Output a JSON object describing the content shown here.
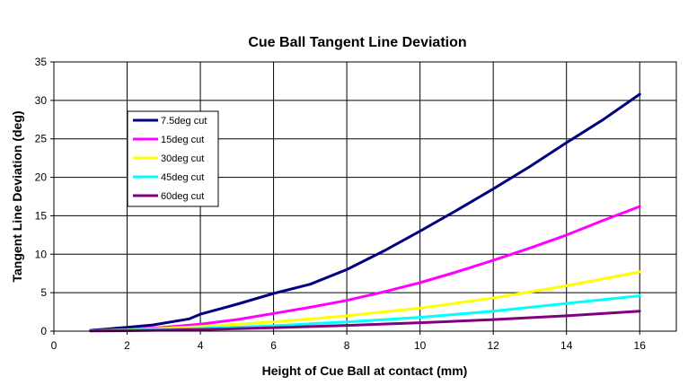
{
  "chart_data": {
    "type": "line",
    "title": "Cue Ball Tangent Line Deviation",
    "xlabel": "Height of Cue Ball at contact (mm)",
    "ylabel": "Tangent Line Deviation (deg)",
    "xlim": [
      0,
      17
    ],
    "ylim": [
      0,
      35
    ],
    "xticks": [
      0,
      2,
      4,
      6,
      8,
      10,
      12,
      14,
      16
    ],
    "yticks": [
      0,
      5,
      10,
      15,
      20,
      25,
      30,
      35
    ],
    "grid": true,
    "legend_position": "top-left",
    "series": [
      {
        "name": "7.5deg cut",
        "color": "#000080",
        "x": [
          1,
          2,
          2.7,
          3.7,
          4,
          5,
          6,
          7,
          8,
          9,
          10,
          11,
          12,
          13,
          14,
          15,
          16
        ],
        "y": [
          0.1,
          0.5,
          0.8,
          1.6,
          2.2,
          3.5,
          4.9,
          6.1,
          8.0,
          10.4,
          13.0,
          15.7,
          18.5,
          21.4,
          24.5,
          27.5,
          30.8
        ]
      },
      {
        "name": "15deg cut",
        "color": "#FF00FF",
        "x": [
          1,
          2,
          3,
          4,
          5,
          6,
          7,
          8,
          9,
          10,
          11,
          12,
          13,
          14,
          15,
          16
        ],
        "y": [
          0.05,
          0.2,
          0.5,
          0.9,
          1.5,
          2.3,
          3.1,
          4.0,
          5.1,
          6.3,
          7.7,
          9.2,
          10.8,
          12.5,
          14.4,
          16.2
        ]
      },
      {
        "name": "30deg cut",
        "color": "#FFFF00",
        "x": [
          1,
          2,
          4,
          6,
          8,
          10,
          12,
          14,
          16
        ],
        "y": [
          0.05,
          0.15,
          0.6,
          1.2,
          2.0,
          3.0,
          4.3,
          5.9,
          7.7
        ]
      },
      {
        "name": "45deg cut",
        "color": "#00FFFF",
        "x": [
          1,
          2,
          4,
          6,
          8,
          10,
          12,
          14,
          16
        ],
        "y": [
          0.05,
          0.1,
          0.35,
          0.7,
          1.2,
          1.8,
          2.6,
          3.6,
          4.6
        ]
      },
      {
        "name": "60deg cut",
        "color": "#800080",
        "x": [
          1,
          2,
          4,
          6,
          8,
          10,
          12,
          14,
          16
        ],
        "y": [
          0.02,
          0.06,
          0.2,
          0.45,
          0.75,
          1.1,
          1.5,
          2.0,
          2.6
        ]
      }
    ]
  }
}
